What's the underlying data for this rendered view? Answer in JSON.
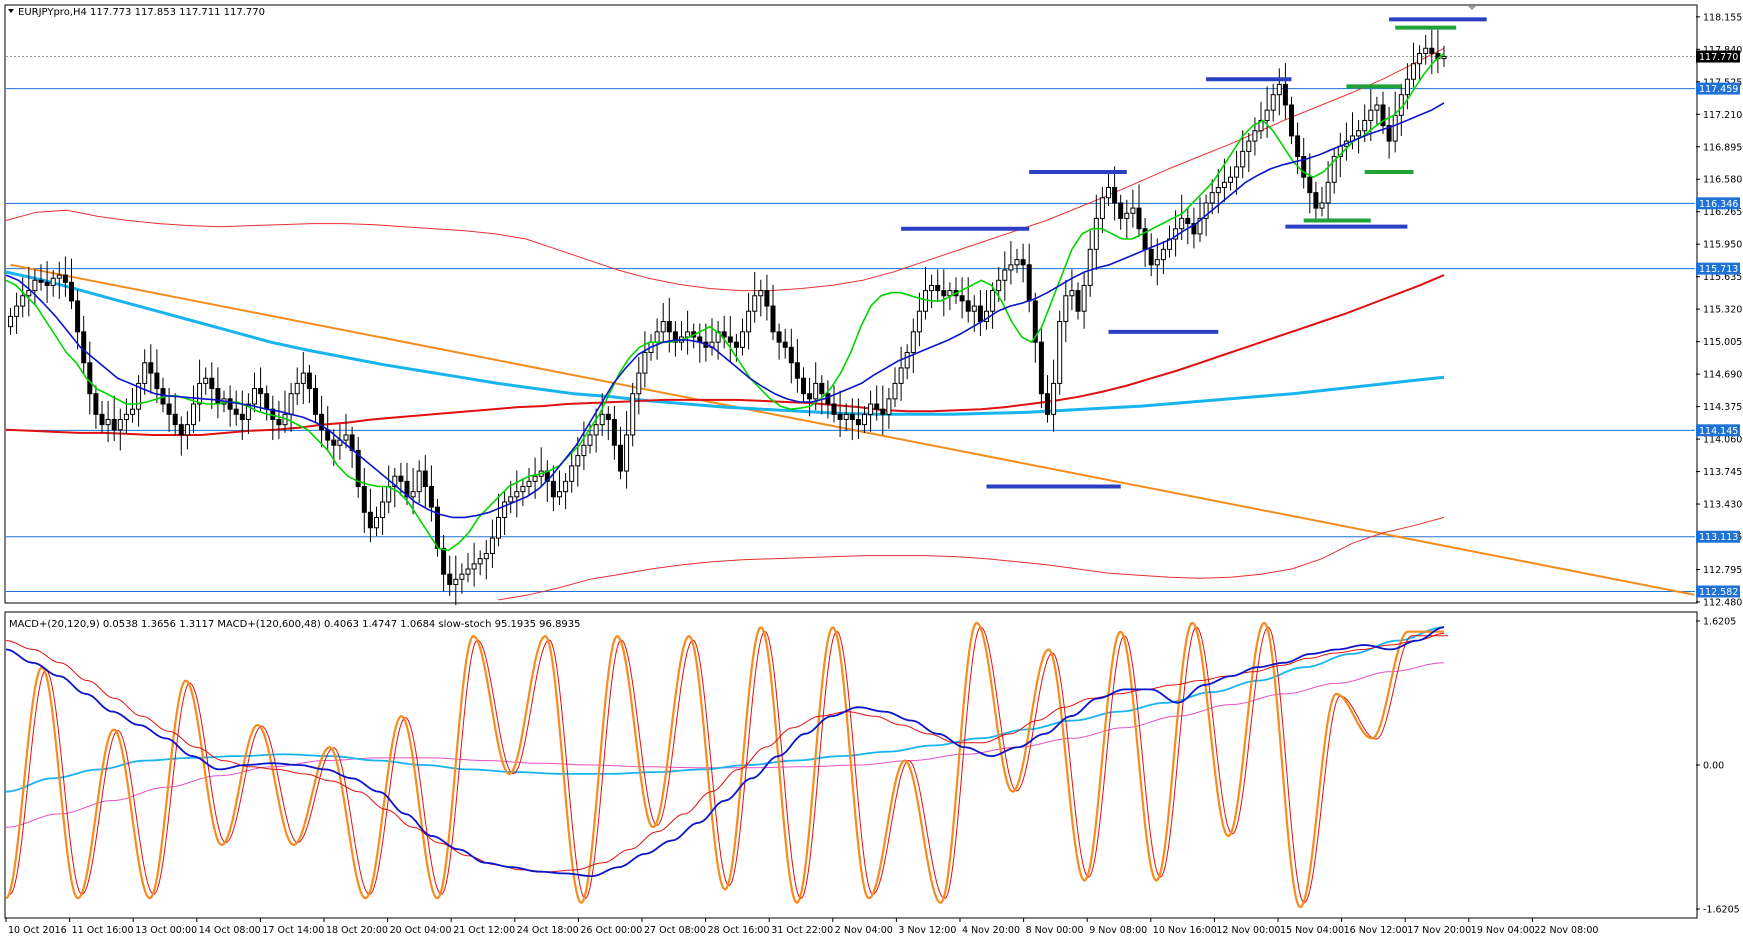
{
  "window": {
    "symbol_info": "EURJPYpro,H4  117.773 117.853 117.711 117.770",
    "indicator_info": "MACD+(20,120,9) 0.0538 1.3656 1.3117   MACD+(120,600,48) 0.4063 1.4747 1.0684   slow-stoch 95.1935 96.8935"
  },
  "colors": {
    "hline": "#1e72d6",
    "tag_bg": "#1e72d6",
    "current_tag_bg": "#000000",
    "ma_fast": "#00d400",
    "ma_mid": "#0a14c8",
    "ma_slow": "#e01010",
    "ma_long": "#18b4f0",
    "envelope": "#e83030",
    "trendline": "#f58c1e",
    "zone_blue": "#2b3fc4",
    "zone_green": "#1fa339",
    "stoch": "#f58c1e",
    "stoch_signal": "#e01010",
    "macd_fast": "#0a14c8",
    "macd_fast_signal": "#e01010",
    "macd_slow": "#18b4f0",
    "macd_slow_signal": "#e650c8"
  },
  "chart_data": [
    {
      "type": "candlestick",
      "title": "EURJPYpro,H4",
      "ohlc_readout": {
        "open": 117.773,
        "high": 117.853,
        "low": 117.711,
        "close": 117.77
      },
      "ylim": [
        112.48,
        118.26
      ],
      "y_ticks": [
        "118.155",
        "117.840",
        "117.525",
        "117.210",
        "116.895",
        "116.580",
        "116.265",
        "115.950",
        "115.635",
        "115.320",
        "115.005",
        "114.690",
        "114.375",
        "114.060",
        "113.745",
        "113.430",
        "113.115",
        "112.795",
        "112.480"
      ],
      "horizontal_levels": [
        117.459,
        116.346,
        115.713,
        114.145,
        113.113,
        112.582
      ],
      "horizontal_level_labels": [
        "117.459",
        "116.346",
        "115.713",
        "114.145",
        "113.113",
        "112.582"
      ],
      "current_price": 117.77,
      "current_price_label": "117.770",
      "n_bars": 236,
      "closes": [
        115.25,
        115.35,
        115.45,
        115.5,
        115.6,
        115.58,
        115.55,
        115.62,
        115.65,
        115.58,
        115.4,
        115.1,
        114.8,
        114.5,
        114.3,
        114.2,
        114.25,
        114.15,
        114.25,
        114.3,
        114.35,
        114.6,
        114.8,
        114.7,
        114.55,
        114.4,
        114.3,
        114.2,
        114.1,
        114.2,
        114.4,
        114.6,
        114.65,
        114.55,
        114.4,
        114.45,
        114.35,
        114.3,
        114.25,
        114.4,
        114.55,
        114.5,
        114.35,
        114.25,
        114.2,
        114.3,
        114.5,
        114.6,
        114.7,
        114.55,
        114.3,
        114.15,
        114.05,
        114.0,
        114.05,
        114.1,
        113.95,
        113.6,
        113.35,
        113.2,
        113.3,
        113.45,
        113.6,
        113.7,
        113.65,
        113.5,
        113.55,
        113.75,
        113.6,
        113.4,
        113.0,
        112.75,
        112.65,
        112.7,
        112.75,
        112.8,
        112.85,
        112.9,
        112.95,
        113.1,
        113.3,
        113.45,
        113.5,
        113.55,
        113.6,
        113.65,
        113.7,
        113.75,
        113.65,
        113.5,
        113.55,
        113.65,
        113.8,
        113.9,
        114.0,
        114.1,
        114.2,
        114.3,
        114.25,
        114.0,
        113.75,
        114.1,
        114.5,
        114.7,
        114.9,
        115.0,
        115.1,
        115.2,
        115.1,
        115.0,
        115.05,
        115.1,
        115.05,
        115.0,
        114.95,
        115.0,
        115.1,
        115.05,
        115.0,
        114.95,
        115.1,
        115.3,
        115.45,
        115.5,
        115.35,
        115.1,
        115.0,
        114.95,
        114.8,
        114.65,
        114.5,
        114.45,
        114.6,
        114.5,
        114.4,
        114.3,
        114.25,
        114.3,
        114.25,
        114.2,
        114.3,
        114.4,
        114.35,
        114.3,
        114.45,
        114.6,
        114.75,
        114.9,
        115.1,
        115.3,
        115.5,
        115.55,
        115.5,
        115.45,
        115.5,
        115.45,
        115.4,
        115.3,
        115.35,
        115.2,
        115.3,
        115.5,
        115.6,
        115.7,
        115.75,
        115.8,
        115.75,
        115.4,
        115.0,
        114.5,
        114.3,
        114.6,
        115.2,
        115.45,
        115.5,
        115.3,
        115.55,
        115.9,
        116.2,
        116.4,
        116.5,
        116.35,
        116.2,
        116.25,
        116.3,
        116.1,
        115.9,
        115.75,
        115.8,
        115.9,
        116.0,
        116.1,
        116.2,
        116.15,
        116.05,
        116.2,
        116.35,
        116.45,
        116.5,
        116.55,
        116.6,
        116.7,
        116.85,
        116.95,
        117.05,
        117.15,
        117.25,
        117.4,
        117.5,
        117.3,
        117.0,
        116.8,
        116.6,
        116.45,
        116.3,
        116.35,
        116.55,
        116.8,
        116.9,
        116.95,
        117.0,
        117.05,
        117.15,
        117.25,
        117.3,
        117.1,
        116.95,
        117.2,
        117.4,
        117.55,
        117.7,
        117.8,
        117.85,
        117.8,
        117.75,
        117.77
      ],
      "ma_fast": [
        115.6,
        115.55,
        115.45,
        115.35,
        115.2,
        115.05,
        114.9,
        114.8,
        114.65,
        114.55,
        114.5,
        114.45,
        114.4,
        114.4,
        114.42,
        114.45,
        114.48,
        114.48,
        114.45,
        114.42,
        114.4,
        114.4,
        114.42,
        114.42,
        114.38,
        114.33,
        114.3,
        114.28,
        114.25,
        114.2,
        114.15,
        114.05,
        113.95,
        113.8,
        113.7,
        113.65,
        113.62,
        113.6,
        113.6,
        113.55,
        113.45,
        113.3,
        113.15,
        113.0,
        112.98,
        113.05,
        113.15,
        113.3,
        113.4,
        113.5,
        113.6,
        113.65,
        113.7,
        113.72,
        113.75,
        113.8,
        113.9,
        114.0,
        114.15,
        114.3,
        114.5,
        114.7,
        114.85,
        114.95,
        115.0,
        115.0,
        115.0,
        115.02,
        115.05,
        115.1,
        115.15,
        115.08,
        114.95,
        114.8,
        114.65,
        114.55,
        114.45,
        114.38,
        114.35,
        114.36,
        114.38,
        114.45,
        114.55,
        114.7,
        114.9,
        115.15,
        115.35,
        115.45,
        115.48,
        115.48,
        115.45,
        115.42,
        115.4,
        115.4,
        115.45,
        115.5,
        115.55,
        115.6,
        115.55,
        115.4,
        115.2,
        115.05,
        115.0,
        115.15,
        115.4,
        115.65,
        115.9,
        116.05,
        116.1,
        116.1,
        116.05,
        116.0,
        116.0,
        116.05,
        116.1,
        116.15,
        116.2,
        116.25,
        116.35,
        116.45,
        116.55,
        116.7,
        116.85,
        117.0,
        117.1,
        117.15,
        117.05,
        116.9,
        116.75,
        116.65,
        116.6,
        116.65,
        116.75,
        116.85,
        116.95,
        117.0,
        117.08,
        117.15,
        117.2,
        117.3,
        117.45,
        117.6,
        117.72,
        117.8
      ],
      "ma_mid": [
        115.65,
        115.6,
        115.5,
        115.38,
        115.25,
        115.1,
        114.95,
        114.85,
        114.75,
        114.65,
        114.6,
        114.55,
        114.5,
        114.48,
        114.47,
        114.46,
        114.45,
        114.44,
        114.42,
        114.4,
        114.38,
        114.35,
        114.33,
        114.3,
        114.27,
        114.22,
        114.15,
        114.05,
        113.95,
        113.85,
        113.75,
        113.65,
        113.55,
        113.45,
        113.38,
        113.33,
        113.3,
        113.3,
        113.32,
        113.35,
        113.4,
        113.45,
        113.5,
        113.58,
        113.7,
        113.85,
        114.0,
        114.2,
        114.4,
        114.6,
        114.75,
        114.88,
        114.95,
        115.0,
        115.02,
        115.02,
        115.0,
        114.95,
        114.85,
        114.75,
        114.65,
        114.57,
        114.5,
        114.45,
        114.42,
        114.42,
        114.45,
        114.5,
        114.55,
        114.6,
        114.68,
        114.75,
        114.82,
        114.87,
        114.92,
        114.97,
        115.02,
        115.08,
        115.15,
        115.22,
        115.3,
        115.35,
        115.38,
        115.42,
        115.48,
        115.55,
        115.62,
        115.68,
        115.72,
        115.75,
        115.8,
        115.85,
        115.9,
        115.95,
        116.0,
        116.08,
        116.15,
        116.25,
        116.35,
        116.45,
        116.55,
        116.62,
        116.68,
        116.72,
        116.75,
        116.78,
        116.82,
        116.87,
        116.92,
        116.97,
        117.02,
        117.06,
        117.1,
        117.15,
        117.2,
        117.25,
        117.32
      ],
      "ma_slow": [
        114.15,
        114.14,
        114.13,
        114.12,
        114.12,
        114.11,
        114.1,
        114.1,
        114.1,
        114.12,
        114.14,
        114.15,
        114.17,
        114.2,
        114.22,
        114.25,
        114.27,
        114.29,
        114.31,
        114.33,
        114.35,
        114.37,
        114.38,
        114.4,
        114.41,
        114.42,
        114.43,
        114.44,
        114.44,
        114.44,
        114.44,
        114.43,
        114.42,
        114.41,
        114.39,
        114.37,
        114.34,
        114.33,
        114.33,
        114.34,
        114.35,
        114.37,
        114.4,
        114.43,
        114.47,
        114.52,
        114.58,
        114.65,
        114.72,
        114.8,
        114.88,
        114.96,
        115.04,
        115.12,
        115.2,
        115.28,
        115.37,
        115.46,
        115.55,
        115.65
      ],
      "ma_long": [
        115.68,
        115.6,
        115.5,
        115.4,
        115.3,
        115.2,
        115.1,
        115.0,
        114.92,
        114.85,
        114.78,
        114.72,
        114.66,
        114.6,
        114.55,
        114.5,
        114.47,
        114.43,
        114.4,
        114.37,
        114.35,
        114.33,
        114.31,
        114.3,
        114.3,
        114.3,
        114.31,
        114.32,
        114.34,
        114.36,
        114.38,
        114.41,
        114.44,
        114.47,
        114.5,
        114.54,
        114.58,
        114.62,
        114.66
      ],
      "envelope_upper": [
        116.18,
        116.26,
        116.28,
        116.22,
        116.18,
        116.15,
        116.13,
        116.12,
        116.13,
        116.14,
        116.15,
        116.15,
        116.14,
        116.12,
        116.1,
        116.08,
        116.05,
        116.0,
        115.9,
        115.8,
        115.7,
        115.62,
        115.56,
        115.52,
        115.5,
        115.5,
        115.52,
        115.55,
        115.6,
        115.68,
        115.78,
        115.88,
        115.98,
        116.08,
        116.18,
        116.3,
        116.42,
        116.55,
        116.68,
        116.8,
        116.92,
        117.05,
        117.18,
        117.3,
        117.42,
        117.55,
        117.7,
        117.85
      ],
      "envelope_lower": [
        112.5,
        112.55,
        112.62,
        112.7,
        112.75,
        112.8,
        112.84,
        112.87,
        112.89,
        112.9,
        112.91,
        112.92,
        112.93,
        112.93,
        112.93,
        112.92,
        112.9,
        112.87,
        112.84,
        112.8,
        112.76,
        112.74,
        112.72,
        112.71,
        112.72,
        112.75,
        112.8,
        112.9,
        113.05,
        113.15,
        113.22,
        113.3
      ]
    },
    {
      "type": "line",
      "title": "MACD+(20,120,9) / MACD+(120,600,48) / slow-stoch",
      "ylim": [
        -1.62,
        1.62
      ],
      "y_ticks": [
        "1.6205",
        "0.00",
        "-1.6205"
      ],
      "x_tick_labels": [
        "10 Oct 2016",
        "11 Oct 16:00",
        "13 Oct 00:00",
        "14 Oct 08:00",
        "17 Oct 14:00",
        "18 Oct 20:00",
        "20 Oct 04:00",
        "21 Oct 12:00",
        "24 Oct 18:00",
        "26 Oct 00:00",
        "27 Oct 08:00",
        "28 Oct 16:00",
        "31 Oct 22:00",
        "2 Nov 04:00",
        "3 Nov 12:00",
        "4 Nov 20:00",
        "8 Nov 00:00",
        "9 Nov 08:00",
        "10 Nov 16:00",
        "12 Nov 00:00",
        "15 Nov 04:00",
        "16 Nov 12:00",
        "17 Nov 20:00",
        "19 Nov 04:00",
        "22 Nov 08:00"
      ],
      "stoch_peaks": [
        -1.5,
        1.1,
        -1.5,
        0.4,
        -1.5,
        0.95,
        -0.9,
        0.45,
        -0.9,
        0.2,
        -1.5,
        0.55,
        -1.5,
        1.45,
        -0.1,
        1.45,
        -1.55,
        1.45,
        -0.7,
        1.45,
        -1.4,
        1.55,
        -1.55,
        1.55,
        -1.5,
        0.05,
        -1.55,
        1.6,
        -0.3,
        1.3,
        -1.3,
        1.5,
        -1.3,
        1.6,
        -0.8,
        1.6,
        -1.6,
        0.8,
        0.3,
        1.5,
        1.5
      ],
      "macd_fast": [
        1.3,
        1.15,
        1.0,
        0.8,
        0.6,
        0.45,
        0.3,
        0.1,
        -0.05,
        0.0,
        0.02,
        0.0,
        -0.05,
        -0.15,
        -0.3,
        -0.55,
        -0.8,
        -0.95,
        -1.1,
        -1.15,
        -1.2,
        -1.22,
        -1.25,
        -1.15,
        -1.0,
        -0.85,
        -0.65,
        -0.4,
        -0.15,
        0.1,
        0.35,
        0.55,
        0.65,
        0.6,
        0.5,
        0.35,
        0.2,
        0.1,
        0.2,
        0.35,
        0.55,
        0.75,
        0.85,
        0.85,
        0.7,
        0.9,
        1.0,
        1.1,
        1.15,
        1.25,
        1.3,
        1.35,
        1.3,
        1.4,
        1.55
      ],
      "macd_fast_signal": [
        1.4,
        1.3,
        1.15,
        0.95,
        0.75,
        0.55,
        0.38,
        0.2,
        0.05,
        -0.02,
        -0.05,
        -0.1,
        -0.18,
        -0.3,
        -0.5,
        -0.7,
        -0.88,
        -1.02,
        -1.12,
        -1.18,
        -1.2,
        -1.18,
        -1.1,
        -0.95,
        -0.75,
        -0.55,
        -0.3,
        -0.05,
        0.2,
        0.42,
        0.55,
        0.6,
        0.55,
        0.45,
        0.35,
        0.25,
        0.25,
        0.35,
        0.5,
        0.65,
        0.75,
        0.8,
        0.85,
        0.9,
        0.95,
        1.0,
        1.05,
        1.12,
        1.2,
        1.26,
        1.3,
        1.35,
        1.4,
        1.48
      ],
      "macd_slow": [
        -0.3,
        -0.15,
        -0.05,
        0.05,
        0.08,
        0.1,
        0.12,
        0.1,
        0.05,
        0.0,
        -0.05,
        -0.08,
        -0.1,
        -0.1,
        -0.08,
        -0.05,
        0.0,
        0.05,
        0.1,
        0.15,
        0.22,
        0.3,
        0.4,
        0.5,
        0.6,
        0.7,
        0.82,
        0.95,
        1.1,
        1.25,
        1.4,
        1.55
      ],
      "macd_slow_signal": [
        -0.7,
        -0.55,
        -0.4,
        -0.25,
        -0.12,
        -0.02,
        0.05,
        0.08,
        0.08,
        0.05,
        0.02,
        0.0,
        -0.02,
        -0.03,
        -0.03,
        -0.02,
        0.0,
        0.05,
        0.12,
        0.2,
        0.3,
        0.42,
        0.55,
        0.68,
        0.8,
        0.92,
        1.05,
        1.15
      ]
    }
  ]
}
